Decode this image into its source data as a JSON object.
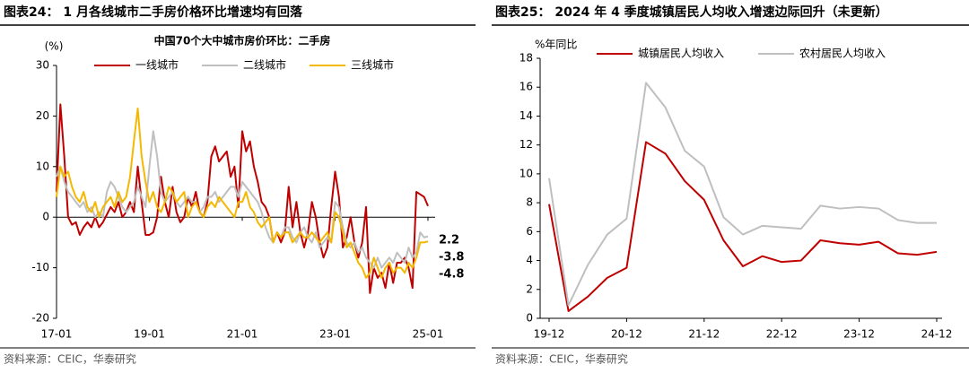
{
  "chart_data": [
    {
      "type": "line",
      "title": "图表24： 1 月各线城市二手房价格环比增速均有回落",
      "subtitle": "中国70个大中城市房价环比：二手房",
      "ylabel": "(%)",
      "source": "资料来源：CEIC，华泰研究",
      "categories": [
        "17-01",
        null,
        null,
        null,
        null,
        null,
        null,
        null,
        null,
        null,
        null,
        null,
        null,
        null,
        null,
        null,
        null,
        null,
        null,
        null,
        null,
        null,
        null,
        null,
        "19-01",
        null,
        null,
        null,
        null,
        null,
        null,
        null,
        null,
        null,
        null,
        null,
        null,
        null,
        null,
        null,
        null,
        null,
        null,
        null,
        null,
        null,
        null,
        null,
        "21-01",
        null,
        null,
        null,
        null,
        null,
        null,
        null,
        null,
        null,
        null,
        null,
        null,
        null,
        null,
        null,
        null,
        null,
        null,
        null,
        null,
        null,
        null,
        null,
        "23-01",
        null,
        null,
        null,
        null,
        null,
        null,
        null,
        null,
        null,
        null,
        null,
        null,
        null,
        null,
        null,
        null,
        null,
        null,
        null,
        null,
        null,
        null,
        null,
        "25-01"
      ],
      "series": [
        {
          "name": "一线城市",
          "color": "#c00000",
          "values": [
            5,
            22.3,
            12,
            0,
            -1.5,
            -1,
            -3.5,
            -2,
            -1,
            -2,
            0,
            -2,
            -1,
            0.5,
            2,
            1,
            3,
            0,
            1,
            3,
            1,
            10,
            3,
            -3.5,
            -3.5,
            -3,
            0,
            8,
            3,
            0,
            6,
            1,
            -1,
            0,
            4,
            2,
            5,
            1,
            0,
            3,
            12,
            14,
            11,
            12,
            13,
            8,
            10,
            2,
            17,
            13,
            15,
            10,
            7,
            3,
            2,
            0,
            -5,
            -3,
            -5,
            -3,
            6,
            -2,
            3,
            -3,
            -6,
            -3,
            3,
            0,
            -5,
            -8,
            -6,
            2,
            9,
            4,
            -6,
            -4,
            0,
            -5,
            -8,
            -5,
            2,
            -15,
            -10,
            -12,
            -11,
            -14,
            -9,
            -13,
            -9,
            -9,
            -8,
            -10,
            -14,
            5,
            4.5,
            4,
            2.2
          ]
        },
        {
          "name": "二线城市",
          "color": "#bfbfbf",
          "values": [
            8,
            10,
            7,
            5,
            4,
            3,
            2,
            3,
            1,
            2,
            0,
            1,
            0,
            5,
            7,
            6,
            4,
            2,
            1,
            2,
            3,
            6,
            4,
            2,
            10,
            17,
            12,
            5,
            3,
            4,
            5,
            3,
            2,
            3,
            4,
            3,
            3,
            1,
            2,
            4,
            4,
            5,
            3,
            4,
            5,
            6,
            6,
            4,
            7,
            6,
            5,
            4,
            3,
            1,
            -2,
            -4,
            -5,
            -3,
            -4,
            -2,
            -2,
            -4,
            -5,
            -3,
            -2,
            -4,
            -5,
            -3,
            -6,
            -5,
            -4,
            -5,
            3,
            2,
            -2,
            -5,
            -6,
            -5,
            -7,
            -6,
            -8,
            -9,
            -10,
            -8,
            -10,
            -9,
            -8,
            -9,
            -7,
            -8,
            -9,
            -6,
            -8,
            -7,
            -3,
            -4,
            -3.8
          ]
        },
        {
          "name": "三线城市",
          "color": "#f5b800",
          "values": [
            4,
            10,
            8,
            9,
            6,
            4,
            3,
            5,
            2,
            1,
            3,
            0,
            2,
            3,
            4,
            2,
            5,
            3,
            4,
            8,
            15,
            21.5,
            12,
            7,
            3,
            5,
            2,
            1,
            3,
            6,
            5,
            3,
            4,
            5,
            0,
            2,
            3,
            1,
            0,
            2,
            3,
            2,
            4,
            3,
            2,
            1,
            0,
            3,
            3,
            5,
            2,
            1,
            -1,
            -2,
            -1,
            0,
            -5,
            -3,
            -4,
            -3,
            -3,
            -5,
            -4,
            -3,
            -4,
            -4,
            -3,
            -4,
            -5,
            -4,
            -3,
            -5,
            1,
            0,
            -3,
            -6,
            -5,
            -7,
            -9,
            -10,
            -12,
            -11,
            -8,
            -10,
            -12,
            -10,
            -9,
            -11,
            -10,
            -10,
            -11,
            -9,
            -10,
            -8,
            -5,
            -5,
            -4.8
          ]
        }
      ],
      "ylim": [
        -20,
        30
      ],
      "yticks": [
        -20,
        -10,
        0,
        10,
        20,
        30
      ]
    },
    {
      "type": "line",
      "title": "图表25： 2024 年 4 季度城镇居民人均收入增速边际回升（未更新）",
      "ylabel": "%年同比",
      "source": "资料来源：CEIC，华泰研究",
      "categories": [
        "19-12",
        null,
        null,
        null,
        "20-12",
        null,
        null,
        null,
        "21-12",
        null,
        null,
        null,
        "22-12",
        null,
        null,
        null,
        "23-12",
        null,
        null,
        null,
        "24-12"
      ],
      "series": [
        {
          "name": "城镇居民人均收入",
          "color": "#c00000",
          "values": [
            7.9,
            0.5,
            1.5,
            2.8,
            3.5,
            12.2,
            11.4,
            9.5,
            8.2,
            5.4,
            3.6,
            4.3,
            3.9,
            4.0,
            5.4,
            5.2,
            5.1,
            5.3,
            4.5,
            4.4,
            4.6
          ]
        },
        {
          "name": "农村居民人均收入",
          "color": "#bfbfbf",
          "values": [
            9.7,
            0.9,
            3.7,
            5.8,
            6.9,
            16.3,
            14.6,
            11.6,
            10.5,
            7.0,
            5.8,
            6.4,
            6.3,
            6.2,
            7.8,
            7.6,
            7.7,
            7.6,
            6.8,
            6.6,
            6.6
          ]
        }
      ],
      "ylim": [
        0,
        18
      ],
      "yticks": [
        0,
        2,
        4,
        6,
        8,
        10,
        12,
        14,
        16,
        18
      ]
    }
  ]
}
